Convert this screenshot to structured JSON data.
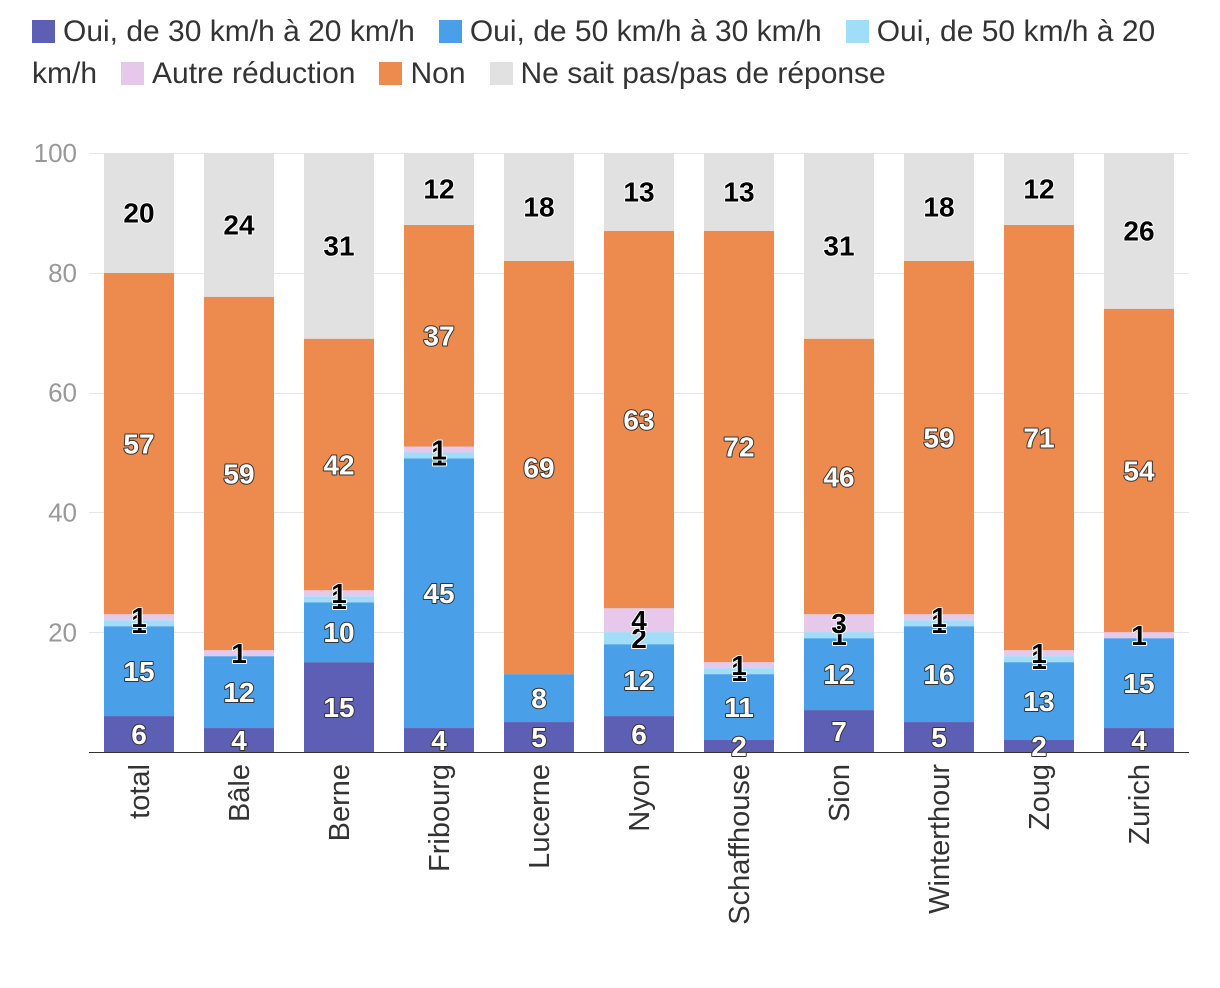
{
  "chart_data": {
    "type": "bar",
    "stacked": true,
    "categories": [
      "total",
      "Bâle",
      "Berne",
      "Fribourg",
      "Lucerne",
      "Nyon",
      "Schaffhouse",
      "Sion",
      "Winterthour",
      "Zoug",
      "Zurich"
    ],
    "series": [
      {
        "name": "Oui, de 30 km/h à 20 km/h",
        "color": "#5c5fb4",
        "values": [
          6,
          4,
          15,
          4,
          5,
          6,
          2,
          7,
          5,
          2,
          4
        ]
      },
      {
        "name": "Oui, de 50 km/h à 30 km/h",
        "color": "#49a0e8",
        "values": [
          15,
          12,
          10,
          45,
          8,
          12,
          11,
          12,
          16,
          13,
          15
        ]
      },
      {
        "name": "Oui, de 50 km/h à 20 km/h",
        "color": "#a0ddf8",
        "values": [
          1,
          0,
          1,
          1,
          0,
          2,
          1,
          1,
          1,
          1,
          0
        ]
      },
      {
        "name": "Autre réduction",
        "color": "#e6c8eb",
        "values": [
          1,
          1,
          1,
          1,
          0,
          4,
          1,
          3,
          1,
          1,
          1
        ]
      },
      {
        "name": "Non",
        "color": "#ed8a4e",
        "values": [
          57,
          59,
          42,
          37,
          69,
          63,
          72,
          46,
          59,
          71,
          54
        ]
      },
      {
        "name": "Ne sait pas/pas de réponse",
        "color": "#e1e1e1",
        "values": [
          20,
          24,
          31,
          12,
          18,
          13,
          13,
          31,
          18,
          12,
          26
        ]
      }
    ],
    "ylim": [
      0,
      100
    ],
    "yticks": [
      20,
      40,
      60,
      80,
      100
    ],
    "grid": true,
    "legend": "top",
    "data_labels": true
  }
}
